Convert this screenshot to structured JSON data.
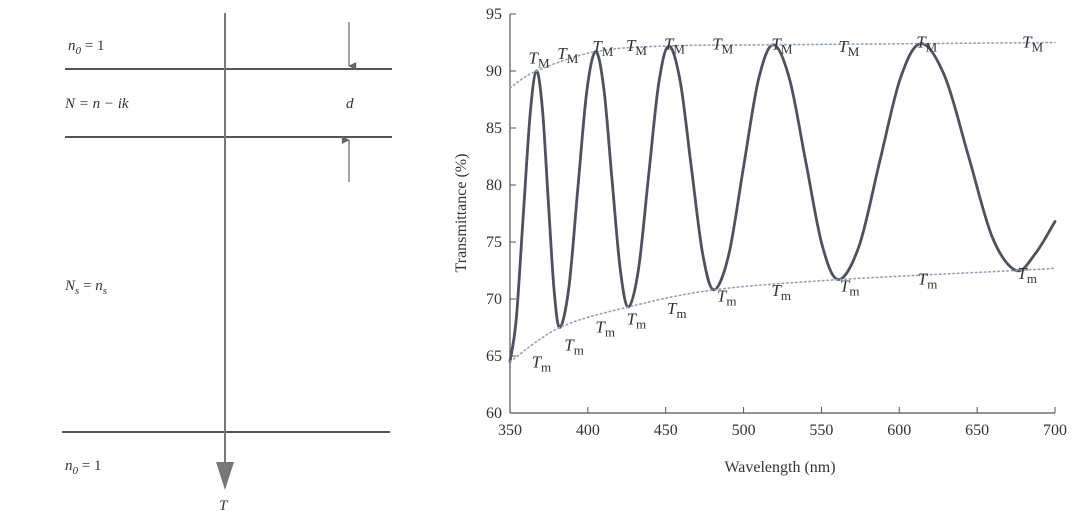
{
  "diagram": {
    "top_medium": [
      "n",
      "0",
      " = 1"
    ],
    "film": "N = n − ik",
    "thickness": "d",
    "substrate": [
      "N",
      "s",
      " = ",
      "n",
      "s"
    ],
    "bottom_medium": [
      "n",
      "0",
      " = 1"
    ],
    "transmitted": "T"
  },
  "chart_data": {
    "type": "line",
    "x_label": "Wavelength (nm)",
    "y_label": "Transmittance (%)",
    "xlim": [
      350,
      700
    ],
    "ylim": [
      60,
      95
    ],
    "xticks": [
      350,
      400,
      450,
      500,
      550,
      600,
      650,
      700
    ],
    "yticks": [
      60,
      65,
      70,
      75,
      80,
      85,
      90,
      95
    ],
    "series": [
      {
        "color": "#4f5160",
        "style": "solid",
        "x": [
          350,
          354,
          358.5,
          363,
          367,
          370.8,
          374.5,
          378.3,
          382,
          387.8,
          393.5,
          399.3,
          405,
          410.3,
          415.5,
          420.8,
          426,
          432.5,
          439,
          445.5,
          452,
          459.3,
          466.5,
          473.8,
          481,
          490.5,
          500,
          509.5,
          519,
          529.5,
          540,
          550.5,
          561,
          574.3,
          587.5,
          600.8,
          614,
          629.3,
          644.5,
          659.8,
          675,
          687.5,
          700
        ],
        "values": [
          64.5,
          68.2,
          77.3,
          86.3,
          90.0,
          86.7,
          78.8,
          70.8,
          67.5,
          71.0,
          79.6,
          88.2,
          91.7,
          88.4,
          80.5,
          72.6,
          69.3,
          72.6,
          80.8,
          88.9,
          92.2,
          89.1,
          81.5,
          73.9,
          70.8,
          73.9,
          81.6,
          89.2,
          92.3,
          89.3,
          82.0,
          74.7,
          71.7,
          74.7,
          82.1,
          89.4,
          92.4,
          89.5,
          82.5,
          75.4,
          72.5,
          74.0,
          76.8
        ]
      },
      {
        "color": "#8fa3b5",
        "style": "dotted",
        "x": [
          350,
          367,
          405,
          452,
          519,
          614,
          700
        ],
        "values": [
          88.5,
          90.0,
          91.7,
          92.2,
          92.3,
          92.4,
          92.5
        ]
      },
      {
        "color": "#8fa3b5",
        "style": "dotted",
        "x": [
          350,
          382,
          426,
          481,
          561,
          675,
          700
        ],
        "values": [
          64.5,
          67.5,
          69.3,
          70.8,
          71.7,
          72.5,
          72.7
        ]
      }
    ],
    "annotations": [
      {
        "text": "T",
        "sub": "M",
        "x": 367,
        "y": 91.2
      },
      {
        "text": "T",
        "sub": "M",
        "x": 385.5,
        "y": 91.6
      },
      {
        "text": "T",
        "sub": "M",
        "x": 408,
        "y": 92.2
      },
      {
        "text": "T",
        "sub": "M",
        "x": 429.6,
        "y": 92.3
      },
      {
        "text": "T",
        "sub": "M",
        "x": 454,
        "y": 92.4
      },
      {
        "text": "T",
        "sub": "M",
        "x": 485,
        "y": 92.4
      },
      {
        "text": "T",
        "sub": "M",
        "x": 523,
        "y": 92.4
      },
      {
        "text": "T",
        "sub": "M",
        "x": 566,
        "y": 92.2
      },
      {
        "text": "T",
        "sub": "M",
        "x": 616,
        "y": 92.6
      },
      {
        "text": "T",
        "sub": "M",
        "x": 684,
        "y": 92.6
      },
      {
        "text": "T",
        "sub": "m",
        "x": 369,
        "y": 64.5
      },
      {
        "text": "T",
        "sub": "m",
        "x": 390,
        "y": 66
      },
      {
        "text": "T",
        "sub": "m",
        "x": 410,
        "y": 67.6
      },
      {
        "text": "T",
        "sub": "m",
        "x": 430,
        "y": 68.3
      },
      {
        "text": "T",
        "sub": "m",
        "x": 456,
        "y": 69.2
      },
      {
        "text": "T",
        "sub": "m",
        "x": 488,
        "y": 70.3
      },
      {
        "text": "T",
        "sub": "m",
        "x": 523,
        "y": 70.8
      },
      {
        "text": "T",
        "sub": "m",
        "x": 567,
        "y": 71.2
      },
      {
        "text": "T",
        "sub": "m",
        "x": 617,
        "y": 71.8
      },
      {
        "text": "T",
        "sub": "m",
        "x": 681,
        "y": 72.3
      }
    ]
  }
}
